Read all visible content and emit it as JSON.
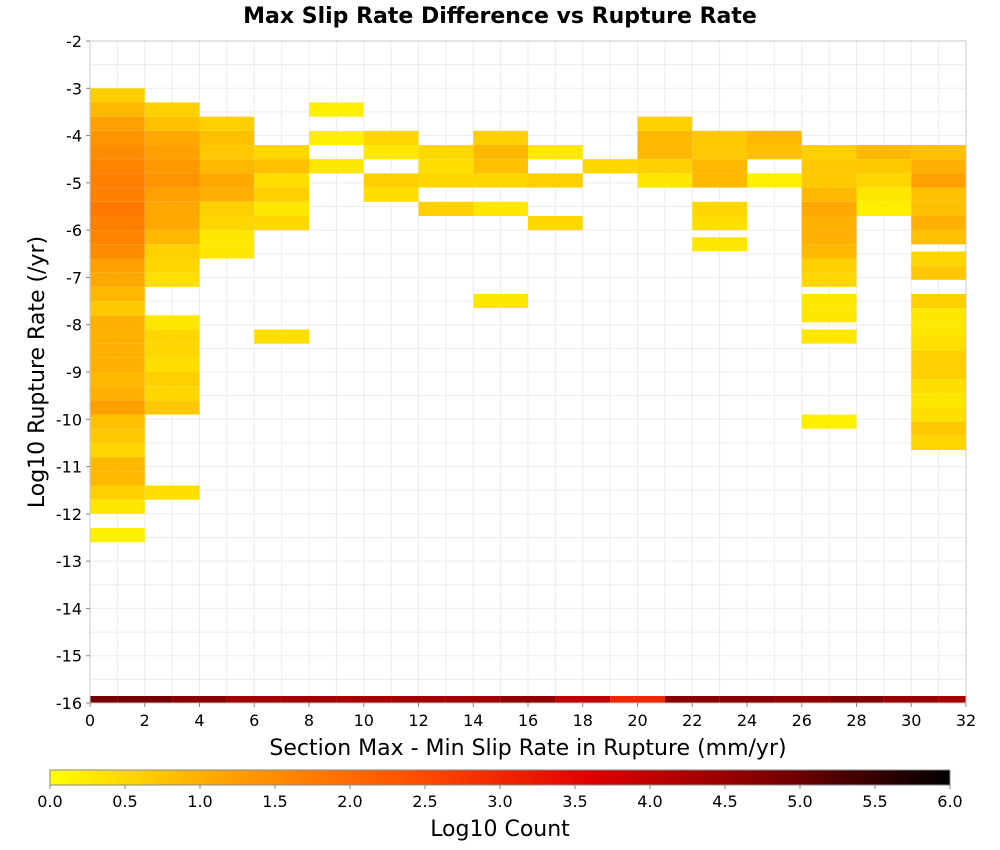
{
  "chart_data": {
    "type": "heatmap",
    "title": "Max Slip Rate Difference vs Rupture Rate",
    "xlabel": "Section Max - Min Slip Rate in Rupture (mm/yr)",
    "ylabel": "Log10 Rupture Rate (/yr)",
    "colorbar_label": "Log10 Count",
    "xlim": [
      0,
      32
    ],
    "ylim": [
      -16,
      -2
    ],
    "x_ticks": [
      "0",
      "2",
      "4",
      "6",
      "8",
      "10",
      "12",
      "14",
      "16",
      "18",
      "20",
      "22",
      "24",
      "26",
      "28",
      "30",
      "32"
    ],
    "y_ticks": [
      "-2",
      "-3",
      "-4",
      "-5",
      "-6",
      "-7",
      "-8",
      "-9",
      "-10",
      "-11",
      "-12",
      "-13",
      "-14",
      "-15",
      "-16"
    ],
    "colorbar_range": [
      0,
      6
    ],
    "colorbar_ticks": [
      "0.0",
      "0.5",
      "1.0",
      "1.5",
      "2.0",
      "2.5",
      "3.0",
      "3.5",
      "4.0",
      "4.5",
      "5.0",
      "5.5",
      "6.0"
    ],
    "colormap": [
      "#ffff00",
      "#ffa000",
      "#ff5000",
      "#e00000",
      "#800000",
      "#000000"
    ],
    "x_bin_width": 2,
    "y_bin_height": 0.3,
    "cells": [
      [
        1,
        -3.15,
        0.6
      ],
      [
        1,
        -3.45,
        0.9
      ],
      [
        1,
        -3.75,
        1.2
      ],
      [
        1,
        -4.05,
        1.4
      ],
      [
        1,
        -4.35,
        1.5
      ],
      [
        1,
        -4.65,
        1.6
      ],
      [
        1,
        -4.95,
        1.7
      ],
      [
        1,
        -5.25,
        1.7
      ],
      [
        1,
        -5.55,
        1.8
      ],
      [
        1,
        -5.85,
        1.7
      ],
      [
        1,
        -6.15,
        1.6
      ],
      [
        1,
        -6.45,
        1.5
      ],
      [
        1,
        -6.75,
        1.2
      ],
      [
        1,
        -7.05,
        1.1
      ],
      [
        1,
        -7.35,
        0.9
      ],
      [
        1,
        -7.65,
        0.7
      ],
      [
        1,
        -7.95,
        1.0
      ],
      [
        1,
        -8.25,
        1.0
      ],
      [
        1,
        -8.55,
        1.0
      ],
      [
        1,
        -8.85,
        1.0
      ],
      [
        1,
        -9.15,
        0.9
      ],
      [
        1,
        -9.45,
        1.0
      ],
      [
        1,
        -9.75,
        1.2
      ],
      [
        1,
        -10.05,
        0.8
      ],
      [
        1,
        -10.35,
        0.7
      ],
      [
        1,
        -10.65,
        0.5
      ],
      [
        1,
        -10.95,
        0.9
      ],
      [
        1,
        -11.25,
        0.9
      ],
      [
        1,
        -11.55,
        0.6
      ],
      [
        1,
        -11.85,
        0.3
      ],
      [
        1,
        -12.45,
        0.2
      ],
      [
        3,
        -3.45,
        0.6
      ],
      [
        3,
        -3.75,
        0.8
      ],
      [
        3,
        -4.05,
        1.1
      ],
      [
        3,
        -4.35,
        1.2
      ],
      [
        3,
        -4.65,
        1.3
      ],
      [
        3,
        -4.95,
        1.4
      ],
      [
        3,
        -5.25,
        1.2
      ],
      [
        3,
        -5.55,
        1.1
      ],
      [
        3,
        -5.85,
        1.1
      ],
      [
        3,
        -6.15,
        0.9
      ],
      [
        3,
        -6.45,
        0.6
      ],
      [
        3,
        -6.75,
        0.5
      ],
      [
        3,
        -7.05,
        0.4
      ],
      [
        3,
        -7.95,
        0.3
      ],
      [
        3,
        -8.25,
        0.5
      ],
      [
        3,
        -8.55,
        0.5
      ],
      [
        3,
        -8.85,
        0.4
      ],
      [
        3,
        -9.15,
        0.6
      ],
      [
        3,
        -9.45,
        0.5
      ],
      [
        3,
        -9.75,
        0.7
      ],
      [
        3,
        -11.55,
        0.4
      ],
      [
        5,
        -3.75,
        0.6
      ],
      [
        5,
        -4.05,
        0.8
      ],
      [
        5,
        -4.35,
        0.7
      ],
      [
        5,
        -4.65,
        0.9
      ],
      [
        5,
        -4.95,
        1.1
      ],
      [
        5,
        -5.25,
        1.0
      ],
      [
        5,
        -5.55,
        0.6
      ],
      [
        5,
        -5.85,
        0.5
      ],
      [
        5,
        -6.15,
        0.3
      ],
      [
        5,
        -6.45,
        0.3
      ],
      [
        7,
        -4.35,
        0.5
      ],
      [
        7,
        -4.65,
        0.8
      ],
      [
        7,
        -4.95,
        0.4
      ],
      [
        7,
        -5.25,
        0.6
      ],
      [
        7,
        -5.55,
        0.3
      ],
      [
        7,
        -5.85,
        0.5
      ],
      [
        7,
        -8.25,
        0.4
      ],
      [
        9,
        -3.45,
        0.2
      ],
      [
        9,
        -4.05,
        0.2
      ],
      [
        9,
        -4.65,
        0.3
      ],
      [
        11,
        -4.05,
        0.5
      ],
      [
        11,
        -4.35,
        0.3
      ],
      [
        11,
        -4.95,
        0.6
      ],
      [
        11,
        -5.25,
        0.4
      ],
      [
        13,
        -4.35,
        0.5
      ],
      [
        13,
        -4.65,
        0.4
      ],
      [
        13,
        -4.95,
        0.5
      ],
      [
        13,
        -5.55,
        0.6
      ],
      [
        15,
        -4.05,
        0.6
      ],
      [
        15,
        -4.35,
        0.9
      ],
      [
        15,
        -4.65,
        0.8
      ],
      [
        15,
        -4.95,
        0.5
      ],
      [
        15,
        -5.55,
        0.3
      ],
      [
        15,
        -7.5,
        0.3
      ],
      [
        17,
        -4.35,
        0.3
      ],
      [
        17,
        -4.95,
        0.6
      ],
      [
        17,
        -5.85,
        0.5
      ],
      [
        19,
        -4.65,
        0.5
      ],
      [
        21,
        -3.75,
        0.6
      ],
      [
        21,
        -4.05,
        0.9
      ],
      [
        21,
        -4.35,
        0.9
      ],
      [
        21,
        -4.65,
        0.6
      ],
      [
        21,
        -4.95,
        0.3
      ],
      [
        23,
        -4.05,
        0.7
      ],
      [
        23,
        -4.35,
        0.7
      ],
      [
        23,
        -4.65,
        0.9
      ],
      [
        23,
        -4.95,
        0.9
      ],
      [
        23,
        -5.55,
        0.5
      ],
      [
        23,
        -5.85,
        0.4
      ],
      [
        23,
        -6.3,
        0.3
      ],
      [
        25,
        -4.05,
        0.9
      ],
      [
        25,
        -4.35,
        0.8
      ],
      [
        25,
        -4.95,
        0.2
      ],
      [
        27,
        -4.35,
        0.6
      ],
      [
        27,
        -4.65,
        0.7
      ],
      [
        27,
        -4.95,
        0.7
      ],
      [
        27,
        -5.25,
        0.9
      ],
      [
        27,
        -5.55,
        1.1
      ],
      [
        27,
        -5.85,
        1.0
      ],
      [
        27,
        -6.15,
        1.0
      ],
      [
        27,
        -6.45,
        0.9
      ],
      [
        27,
        -6.75,
        0.6
      ],
      [
        27,
        -7.05,
        0.5
      ],
      [
        27,
        -7.5,
        0.3
      ],
      [
        27,
        -7.8,
        0.3
      ],
      [
        27,
        -8.25,
        0.3
      ],
      [
        27,
        -10.05,
        0.2
      ],
      [
        29,
        -4.35,
        0.9
      ],
      [
        29,
        -4.65,
        0.7
      ],
      [
        29,
        -4.95,
        0.5
      ],
      [
        29,
        -5.25,
        0.3
      ],
      [
        29,
        -5.55,
        0.2
      ],
      [
        31,
        -4.35,
        0.8
      ],
      [
        31,
        -4.65,
        1.0
      ],
      [
        31,
        -4.95,
        1.2
      ],
      [
        31,
        -5.25,
        0.8
      ],
      [
        31,
        -5.55,
        0.8
      ],
      [
        31,
        -5.85,
        1.0
      ],
      [
        31,
        -6.15,
        0.8
      ],
      [
        31,
        -6.6,
        0.5
      ],
      [
        31,
        -6.9,
        0.7
      ],
      [
        31,
        -7.5,
        0.6
      ],
      [
        31,
        -7.8,
        0.3
      ],
      [
        31,
        -8.1,
        0.3
      ],
      [
        31,
        -8.4,
        0.4
      ],
      [
        31,
        -8.7,
        0.6
      ],
      [
        31,
        -9.0,
        0.6
      ],
      [
        31,
        -9.3,
        0.4
      ],
      [
        31,
        -9.6,
        0.3
      ],
      [
        31,
        -9.9,
        0.4
      ],
      [
        31,
        -10.2,
        0.7
      ],
      [
        31,
        -10.5,
        0.5
      ]
    ],
    "bottom_row": {
      "y": -16,
      "values": [
        4.9,
        4.9,
        4.7,
        4.4,
        4.4,
        4.3,
        4.4,
        4.4,
        4.6,
        4.0,
        3.0,
        4.7,
        4.7,
        4.6,
        4.8,
        4.5,
        4.3
      ]
    }
  }
}
